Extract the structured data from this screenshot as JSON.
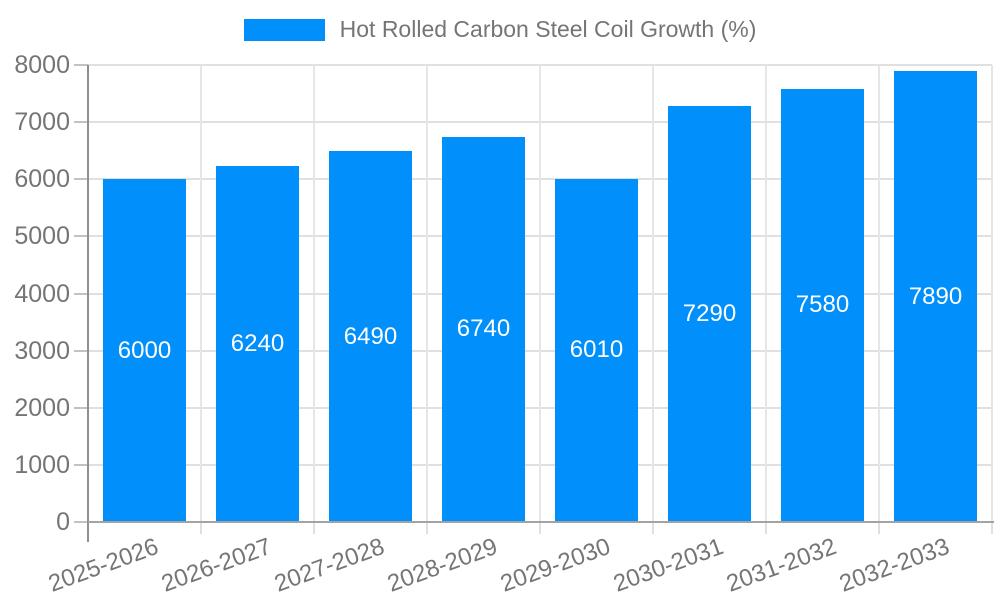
{
  "legend": {
    "label": "Hot Rolled Carbon Steel Coil Growth (%)"
  },
  "chart_data": {
    "type": "bar",
    "title": "Hot Rolled Carbon Steel Coil Growth (%)",
    "series": [
      {
        "name": "Hot Rolled Carbon Steel Coil Growth (%)",
        "values": [
          6000,
          6240,
          6490,
          6740,
          6010,
          7290,
          7580,
          7890
        ]
      }
    ],
    "categories": [
      "2025-2026",
      "2026-2027",
      "2027-2028",
      "2028-2029",
      "2029-2030",
      "2030-2031",
      "2031-2032",
      "2032-2033"
    ],
    "xlabel": "",
    "ylabel": "",
    "ylim": [
      0,
      8000
    ],
    "yticks": [
      0,
      1000,
      2000,
      3000,
      4000,
      5000,
      6000,
      7000,
      8000
    ],
    "grid": true,
    "legend_position": "top",
    "bar_labels_visible": true,
    "bar_label_color": "#ffffff",
    "colors": {
      "bar": "#008FFB",
      "axis_text": "#757575",
      "gridline": "#e0e0e0",
      "axis_line": "#999999"
    }
  }
}
